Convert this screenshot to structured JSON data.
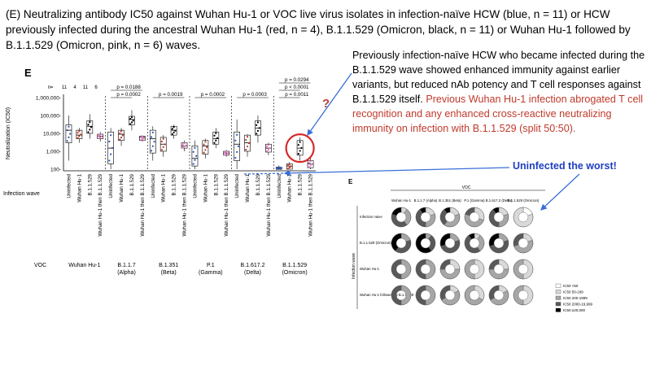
{
  "caption": "(E) Neutralizing antibody IC50 against Wuhan Hu-1 or VOC live virus isolates in infection-naïve HCW (blue, n = 11) or HCW previously infected during the ancestral Wuhan Hu-1 (red, n = 4), B.1.1.529 (Omicron, black, n = 11) or Wuhan Hu-1 followed by B.1.1.529 (Omicron, pink, n = 6) waves.",
  "annotation": {
    "part1": "Previously infection-naïve HCW who became infected during the B.1.1.529 wave showed enhanced immunity against earlier variants, but reduced nAb potency and T cell responses against B.1.1.529 itself.",
    "part2": "Previous Wuhan Hu-1 infection abrogated T cell recognition and any enhanced cross-reactive neutralizing immunity on infection with B.1.1.529 (split 50:50)."
  },
  "callout": {
    "worst": "Uninfected the worst!",
    "question": "?"
  },
  "colors": {
    "blue": "#2a52be",
    "red": "#c0392b",
    "black": "#000000",
    "pink": "#e377c2",
    "highlight": "#d62728",
    "callout_blue": "#1f3fbf",
    "arrow": "#3a6fd8"
  },
  "chart_data": [
    {
      "type": "scatter",
      "panel": "E",
      "ylabel": "Neutralization (IC50)",
      "yscale": "log",
      "yticks": [
        "100-",
        "1,000-",
        "10,000-",
        "100,000-",
        "1,000,000-"
      ],
      "yvals": [
        100,
        1000,
        10000,
        100000,
        1000000
      ],
      "n_values": [
        "n=",
        "11",
        "4",
        "11",
        "6"
      ],
      "row_label": "Infection wave",
      "voc_label": "VOC",
      "groups_wave": [
        "Uninfected",
        "Wuhan Hu-1",
        "B.1.1.529",
        "Wuhan Hu-1 then B.1.1.529"
      ],
      "voc": [
        {
          "name": "Wuhan Hu-1",
          "sub": "",
          "pvals": [],
          "medians": [
            15000,
            8000,
            25000,
            7000
          ],
          "q1": [
            3000,
            5000,
            10000,
            5000
          ],
          "q3": [
            30000,
            15000,
            50000,
            9000
          ],
          "min": [
            300,
            3000,
            5000,
            3500
          ],
          "max": [
            100000,
            20000,
            120000,
            12000
          ]
        },
        {
          "name": "B.1.1.7",
          "sub": "(Alpha)",
          "pvals": [
            "p = 0.0188",
            "p = 0.0002"
          ],
          "medians": [
            1500,
            9000,
            60000,
            6000
          ],
          "q1": [
            200,
            4000,
            30000,
            4000
          ],
          "q3": [
            12000,
            15000,
            90000,
            7000
          ],
          "min": [
            100,
            2000,
            15000,
            3500
          ],
          "max": [
            20000,
            20000,
            200000,
            8000
          ]
        },
        {
          "name": "B.1.351",
          "sub": "(Beta)",
          "pvals": [
            "p = 0.0019"
          ],
          "medians": [
            5000,
            2500,
            15000,
            2000
          ],
          "q1": [
            800,
            1000,
            8000,
            1500
          ],
          "q3": [
            15000,
            6000,
            25000,
            3000
          ],
          "min": [
            300,
            500,
            5000,
            1000
          ],
          "max": [
            25000,
            8000,
            30000,
            4000
          ]
        },
        {
          "name": "P.1",
          "sub": "(Gamma)",
          "pvals": [
            "p = 0.0002"
          ],
          "medians": [
            400,
            2000,
            5000,
            800
          ],
          "q1": [
            150,
            700,
            2500,
            600
          ],
          "q3": [
            2000,
            4000,
            12000,
            1000
          ],
          "min": [
            100,
            400,
            1500,
            500
          ],
          "max": [
            4000,
            5000,
            20000,
            1200
          ]
        },
        {
          "name": "B.1.617.2",
          "sub": "(Delta)",
          "pvals": [
            "p = 0.0003"
          ],
          "medians": [
            2500,
            3000,
            20000,
            1500
          ],
          "q1": [
            300,
            1000,
            8000,
            900
          ],
          "q3": [
            12000,
            8000,
            50000,
            2500
          ],
          "min": [
            100,
            500,
            3000,
            600
          ],
          "max": [
            60000,
            9000,
            100000,
            3000
          ]
        },
        {
          "name": "B.1.1.529",
          "sub": "(Omicron)",
          "pvals": [
            "p = 0.0294",
            "p < 0.0001",
            "p = 0.0011"
          ],
          "medians": [
            100,
            150,
            1500,
            200
          ],
          "q1": [
            100,
            100,
            600,
            120
          ],
          "q3": [
            130,
            200,
            4000,
            300
          ],
          "min": [
            100,
            100,
            300,
            100
          ],
          "max": [
            160,
            250,
            6000,
            500
          ]
        }
      ]
    },
    {
      "type": "pie",
      "panel": "E",
      "top_label": "VOC",
      "side_label": "Infection wave",
      "columns": [
        "Wuhan Hu-1",
        "B.1.1.7 (Alpha)",
        "B.1.351 (Beta)",
        "P.1 (Gamma)",
        "B.1.617.2 (Delta)",
        "B.1.1.529 (Omicron)"
      ],
      "rows": [
        "Infection naive",
        "B.1.1.529 (Omicron)",
        "Wuhan Hu-1",
        "Wuhan Hu-1 followed by B.1.1.529"
      ],
      "legend": [
        "IC50 <50",
        "IC50 50-199",
        "IC50 200-1999",
        "IC50 2000-19,999",
        "IC50 ≥20,000"
      ],
      "legend_colors": [
        "#ffffff",
        "#d9d9d9",
        "#a6a6a6",
        "#595959",
        "#000000"
      ],
      "fractions": [
        [
          [
            0,
            0.1,
            0.3,
            0.4,
            0.2
          ],
          [
            0,
            0.2,
            0.3,
            0.4,
            0.1
          ],
          [
            0,
            0.2,
            0.4,
            0.3,
            0.1
          ],
          [
            0,
            0.3,
            0.5,
            0.2,
            0
          ],
          [
            0,
            0.2,
            0.3,
            0.4,
            0.1
          ],
          [
            0.2,
            0.8,
            0,
            0,
            0
          ]
        ],
        [
          [
            0,
            0,
            0.2,
            0.4,
            0.4
          ],
          [
            0,
            0,
            0.1,
            0.3,
            0.6
          ],
          [
            0,
            0,
            0.2,
            0.5,
            0.3
          ],
          [
            0,
            0.1,
            0.3,
            0.5,
            0.1
          ],
          [
            0,
            0,
            0.2,
            0.5,
            0.3
          ],
          [
            0,
            0.2,
            0.5,
            0.3,
            0
          ]
        ],
        [
          [
            0,
            0,
            0.5,
            0.5,
            0
          ],
          [
            0,
            0,
            0.5,
            0.5,
            0
          ],
          [
            0,
            0.25,
            0.5,
            0.25,
            0
          ],
          [
            0,
            0.5,
            0.5,
            0,
            0
          ],
          [
            0,
            0.25,
            0.5,
            0.25,
            0
          ],
          [
            0,
            0.5,
            0.5,
            0,
            0
          ]
        ],
        [
          [
            0,
            0,
            0.5,
            0.5,
            0
          ],
          [
            0,
            0,
            0.5,
            0.5,
            0
          ],
          [
            0,
            0.17,
            0.5,
            0.33,
            0
          ],
          [
            0,
            0.33,
            0.67,
            0,
            0
          ],
          [
            0,
            0.17,
            0.5,
            0.33,
            0
          ],
          [
            0,
            0.5,
            0.5,
            0,
            0
          ]
        ]
      ]
    }
  ]
}
